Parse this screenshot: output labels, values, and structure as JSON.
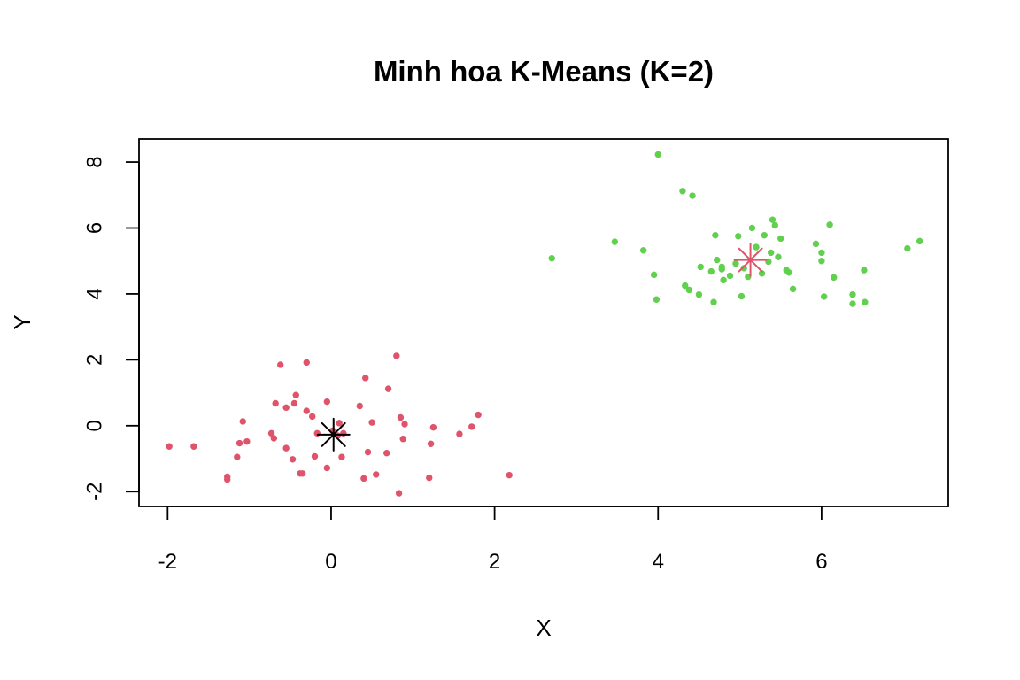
{
  "chart_data": {
    "type": "scatter",
    "title": "Minh hoa K-Means (K=2)",
    "xlabel": "X",
    "ylabel": "Y",
    "xlim": [
      -2.35,
      7.55
    ],
    "ylim": [
      -2.45,
      8.7
    ],
    "x_ticks": [
      -2,
      0,
      2,
      4,
      6
    ],
    "y_ticks": [
      -2,
      0,
      2,
      4,
      6,
      8
    ],
    "x_tick_labels": [
      "-2",
      "0",
      "2",
      "4",
      "6"
    ],
    "y_tick_labels": [
      "-2",
      "0",
      "2",
      "4",
      "6",
      "8"
    ],
    "grid": false,
    "legend": "none",
    "series": [
      {
        "color": "#DF536B",
        "points": [
          [
            -1.98,
            -0.63
          ],
          [
            -1.68,
            -0.63
          ],
          [
            -1.27,
            -1.55
          ],
          [
            -1.27,
            -1.63
          ],
          [
            -1.15,
            -0.95
          ],
          [
            -1.12,
            -0.53
          ],
          [
            -1.08,
            0.13
          ],
          [
            -1.03,
            -0.48
          ],
          [
            -0.73,
            -0.23
          ],
          [
            -0.7,
            -0.38
          ],
          [
            -0.68,
            0.68
          ],
          [
            -0.62,
            1.85
          ],
          [
            -0.55,
            -0.68
          ],
          [
            -0.55,
            0.55
          ],
          [
            -0.47,
            -1.02
          ],
          [
            -0.45,
            0.68
          ],
          [
            -0.43,
            0.93
          ],
          [
            -0.38,
            -1.45
          ],
          [
            -0.35,
            -1.45
          ],
          [
            -0.3,
            0.45
          ],
          [
            -0.3,
            1.92
          ],
          [
            -0.23,
            0.28
          ],
          [
            -0.2,
            -0.93
          ],
          [
            -0.17,
            -0.23
          ],
          [
            -0.05,
            -1.28
          ],
          [
            -0.05,
            0.73
          ],
          [
            0.02,
            -0.15
          ],
          [
            0.08,
            -0.3
          ],
          [
            0.1,
            0.08
          ],
          [
            0.13,
            -0.95
          ],
          [
            0.15,
            -0.23
          ],
          [
            0.35,
            0.6
          ],
          [
            0.4,
            -1.6
          ],
          [
            0.42,
            1.45
          ],
          [
            0.45,
            -0.8
          ],
          [
            0.5,
            0.1
          ],
          [
            0.55,
            -1.48
          ],
          [
            0.68,
            -0.83
          ],
          [
            0.7,
            1.12
          ],
          [
            0.8,
            2.12
          ],
          [
            0.83,
            -2.05
          ],
          [
            0.85,
            0.25
          ],
          [
            0.88,
            -0.4
          ],
          [
            0.9,
            0.05
          ],
          [
            1.2,
            -1.58
          ],
          [
            1.22,
            -0.55
          ],
          [
            1.25,
            -0.05
          ],
          [
            1.57,
            -0.25
          ],
          [
            1.72,
            -0.03
          ],
          [
            1.8,
            0.33
          ],
          [
            2.18,
            -1.5
          ]
        ]
      },
      {
        "color": "#61D04F",
        "points": [
          [
            2.7,
            5.08
          ],
          [
            3.47,
            5.58
          ],
          [
            3.82,
            5.32
          ],
          [
            3.95,
            4.58
          ],
          [
            3.98,
            3.83
          ],
          [
            4.0,
            8.23
          ],
          [
            4.3,
            7.12
          ],
          [
            4.33,
            4.25
          ],
          [
            4.38,
            4.12
          ],
          [
            4.42,
            6.98
          ],
          [
            4.5,
            3.98
          ],
          [
            4.52,
            4.82
          ],
          [
            4.65,
            4.68
          ],
          [
            4.68,
            3.75
          ],
          [
            4.7,
            5.78
          ],
          [
            4.72,
            5.03
          ],
          [
            4.78,
            4.75
          ],
          [
            4.78,
            4.82
          ],
          [
            4.8,
            4.42
          ],
          [
            4.88,
            4.55
          ],
          [
            4.95,
            4.92
          ],
          [
            4.98,
            5.75
          ],
          [
            5.02,
            3.93
          ],
          [
            5.05,
            4.78
          ],
          [
            5.1,
            4.52
          ],
          [
            5.15,
            6.0
          ],
          [
            5.2,
            5.42
          ],
          [
            5.27,
            4.62
          ],
          [
            5.3,
            5.78
          ],
          [
            5.35,
            4.98
          ],
          [
            5.38,
            5.25
          ],
          [
            5.4,
            6.25
          ],
          [
            5.43,
            6.08
          ],
          [
            5.47,
            5.12
          ],
          [
            5.5,
            5.68
          ],
          [
            5.57,
            4.72
          ],
          [
            5.6,
            4.65
          ],
          [
            5.65,
            4.15
          ],
          [
            5.93,
            5.52
          ],
          [
            6.0,
            5.25
          ],
          [
            6.0,
            5.0
          ],
          [
            6.03,
            3.92
          ],
          [
            6.1,
            6.1
          ],
          [
            6.15,
            4.5
          ],
          [
            6.38,
            3.7
          ],
          [
            6.38,
            3.98
          ],
          [
            6.52,
            4.72
          ],
          [
            6.53,
            3.75
          ],
          [
            7.05,
            5.38
          ],
          [
            7.2,
            5.6
          ]
        ]
      }
    ],
    "centers": [
      {
        "x": 0.03,
        "y": -0.27,
        "color": "#000000"
      },
      {
        "x": 5.13,
        "y": 5.03,
        "color": "#DF536B"
      }
    ]
  }
}
